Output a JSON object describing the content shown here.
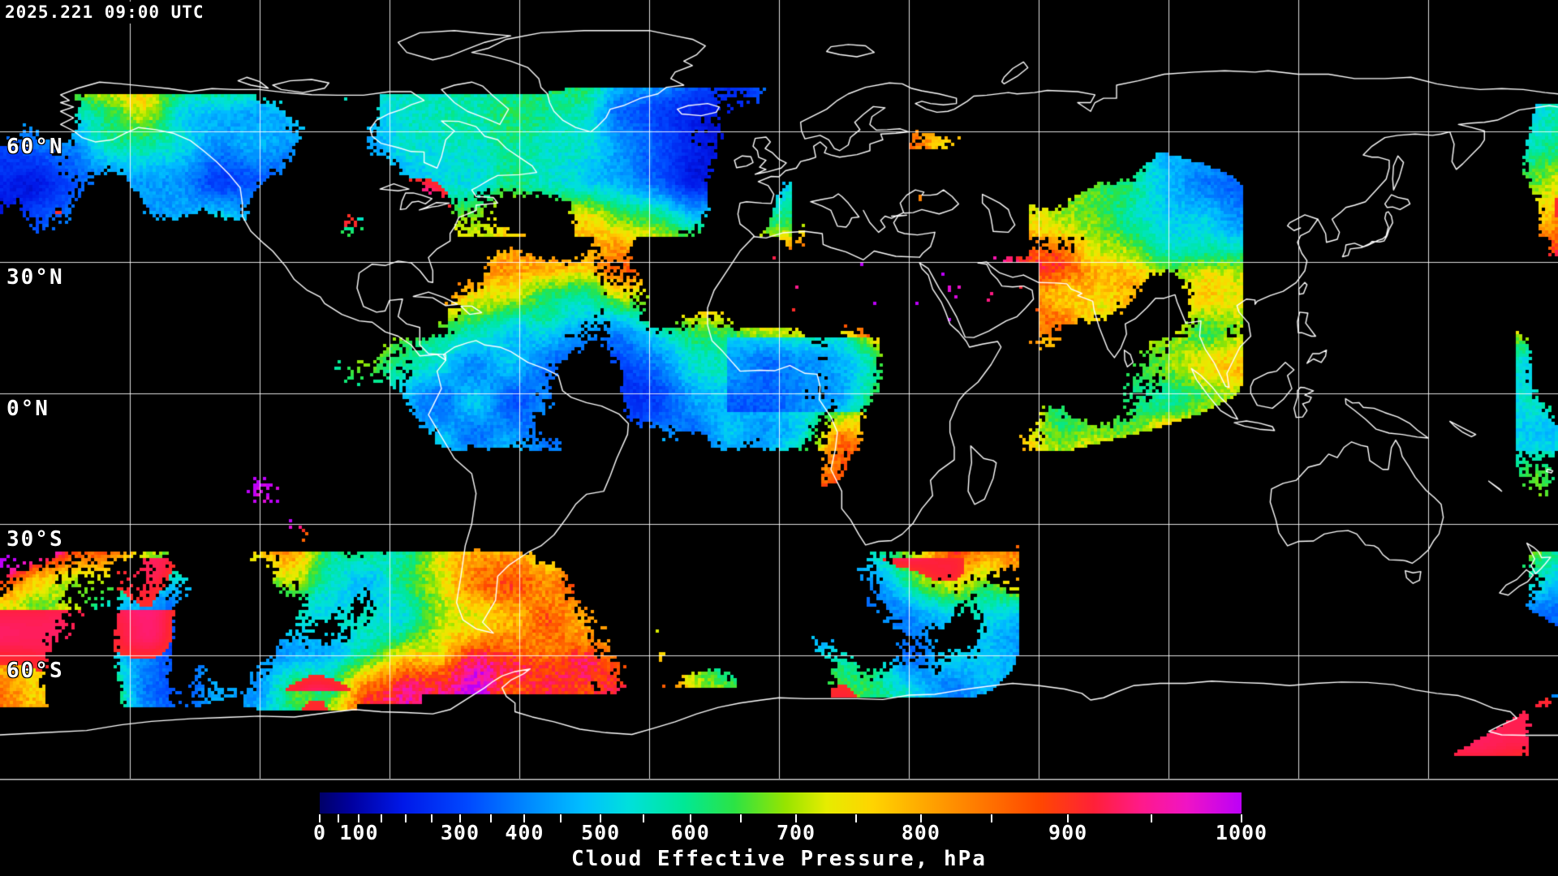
{
  "header": {
    "timestamp": "2025.221 09:00 UTC"
  },
  "map": {
    "projection": "equirectangular",
    "grid_step_deg": 30,
    "lat_labels": [
      {
        "text": "60°N",
        "lat": 60
      },
      {
        "text": "30°N",
        "lat": 30
      },
      {
        "text": "0°N",
        "lat": 0
      },
      {
        "text": "30°S",
        "lat": -30
      },
      {
        "text": "60°S",
        "lat": -60
      }
    ]
  },
  "colorbar": {
    "title": "Cloud Effective Pressure, hPa",
    "min_hpa": 0,
    "max_hpa": 1000,
    "tick_step_hpa": 50,
    "tick_labels": [
      0,
      100,
      300,
      400,
      500,
      600,
      700,
      800,
      900,
      1000
    ],
    "scale": "exponential",
    "scale_k": 1.65,
    "gradient_stops": [
      {
        "f": 0.0,
        "c": "#000068"
      },
      {
        "f": 0.035,
        "c": "#0000A0"
      },
      {
        "f": 0.09,
        "c": "#0018E8"
      },
      {
        "f": 0.16,
        "c": "#0048FF"
      },
      {
        "f": 0.225,
        "c": "#0088FF"
      },
      {
        "f": 0.285,
        "c": "#00BEFF"
      },
      {
        "f": 0.335,
        "c": "#00E0DC"
      },
      {
        "f": 0.395,
        "c": "#00E896"
      },
      {
        "f": 0.45,
        "c": "#2CE344"
      },
      {
        "f": 0.505,
        "c": "#96E400"
      },
      {
        "f": 0.55,
        "c": "#E6EC00"
      },
      {
        "f": 0.6,
        "c": "#FFD400"
      },
      {
        "f": 0.66,
        "c": "#FFA400"
      },
      {
        "f": 0.72,
        "c": "#FF7600"
      },
      {
        "f": 0.78,
        "c": "#FF4800"
      },
      {
        "f": 0.84,
        "c": "#FF2038"
      },
      {
        "f": 0.89,
        "c": "#FF1A88"
      },
      {
        "f": 0.94,
        "c": "#F014C4"
      },
      {
        "f": 1.0,
        "c": "#BC00F8"
      }
    ]
  },
  "chart_data": {
    "type": "heatmap",
    "title": "Cloud Effective Pressure, hPa",
    "timestamp": "2025.221 09:00 UTC",
    "value_range_hpa": [
      0,
      1000
    ],
    "colorbar_tick_step_hpa": 50,
    "colorbar_tick_labels_hpa": [
      0,
      100,
      300,
      400,
      500,
      600,
      700,
      800,
      900,
      1000
    ],
    "colorbar_scale": "exponential",
    "latitude_gridlines_deg": [
      60,
      30,
      0,
      -30,
      -60
    ],
    "longitude_grid_step_deg": 30,
    "no_data_color": "#000000",
    "coastline_color": "#FFFFFF",
    "grid_color": "#FFFFFF"
  }
}
